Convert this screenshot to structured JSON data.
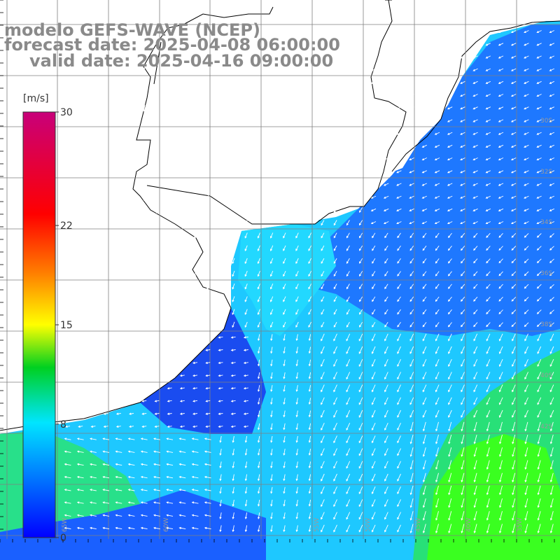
{
  "title": {
    "line1": "modelo GEFS-WAVE (NCEP)",
    "line2": "forecast date: 2025-04-08 06:00:00",
    "line3": "valid date: 2025-04-16 09:00:00"
  },
  "colorbar": {
    "unit": "[m/s]",
    "ticks": [
      {
        "value": 30,
        "label": "30"
      },
      {
        "value": 22,
        "label": "22"
      },
      {
        "value": 15,
        "label": "15"
      },
      {
        "value": 8,
        "label": "8"
      },
      {
        "value": 0,
        "label": "0"
      }
    ],
    "min": 0,
    "max": 30,
    "colors": [
      "#0000ff",
      "#0077ff",
      "#00e5ff",
      "#00d020",
      "#ffff00",
      "#ff8000",
      "#ff0000",
      "#c8007a"
    ]
  },
  "grid_labels": {
    "lat": [
      "30S",
      "32S",
      "34S",
      "36S",
      "38S",
      "40S",
      "42S"
    ],
    "lon": [
      "65W",
      "60W",
      "55W",
      "50W",
      "45W",
      "40W",
      "35W"
    ]
  },
  "colors": {
    "background": "#ffffff",
    "land": "#ffffff",
    "coastline": "#000000",
    "grid": "#7f7f7f",
    "arrows": "#ffffff",
    "title": "#8a8a8a"
  }
}
